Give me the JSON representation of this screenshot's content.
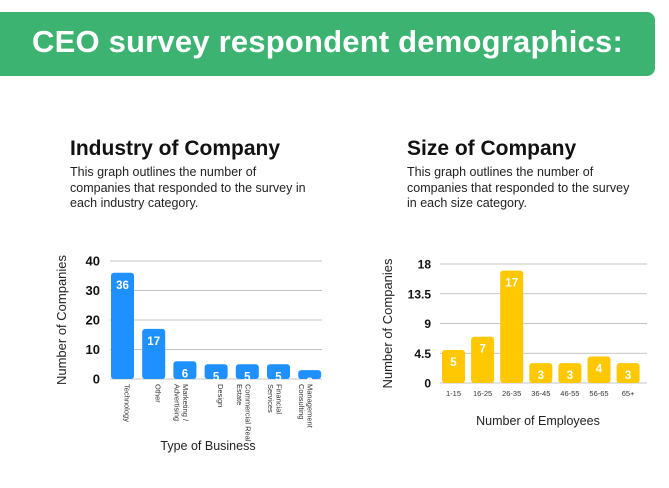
{
  "banner": {
    "title": "CEO survey respondent demographics:"
  },
  "colors": {
    "banner": "#3cb371",
    "industry_bar": "#1e90ff",
    "size_bar": "#ffc800",
    "grid": "#b0b0b0",
    "bar_label": "#ffffff"
  },
  "chart_data": [
    {
      "type": "bar",
      "title": "Industry of Company",
      "subtitle": "This graph outlines the number of companies that responded to the survey in each industry category.",
      "xlabel": "Type of Business",
      "ylabel": "Number of Companies",
      "ylim": [
        0,
        40
      ],
      "yticks": [
        "0",
        "10",
        "20",
        "30",
        "40"
      ],
      "grid": true,
      "categories": [
        "Technology",
        "Other",
        "Marketing / Advertising",
        "Design",
        "Commercial Real Estate",
        "Financial Services",
        "Management Consulting"
      ],
      "values": [
        36,
        17,
        6,
        5,
        5,
        5,
        3
      ],
      "data_labels": [
        "36",
        "17",
        "6",
        "5",
        "5",
        "5",
        "3"
      ]
    },
    {
      "type": "bar",
      "title": "Size of Company",
      "subtitle": "This graph outlines the number of companies that responded to the survey in each size category.",
      "xlabel": "Number of Employees",
      "ylabel": "Number of Companies",
      "ylim": [
        0,
        18
      ],
      "yticks": [
        "0",
        "4.5",
        "9",
        "13.5",
        "18"
      ],
      "grid": true,
      "categories": [
        "1-15",
        "16-25",
        "26-35",
        "36-45",
        "46-55",
        "56-65",
        "65+"
      ],
      "values": [
        5,
        7,
        17,
        3,
        3,
        4,
        3
      ],
      "data_labels": [
        "5",
        "7",
        "17",
        "3",
        "3",
        "4",
        "3"
      ]
    }
  ]
}
